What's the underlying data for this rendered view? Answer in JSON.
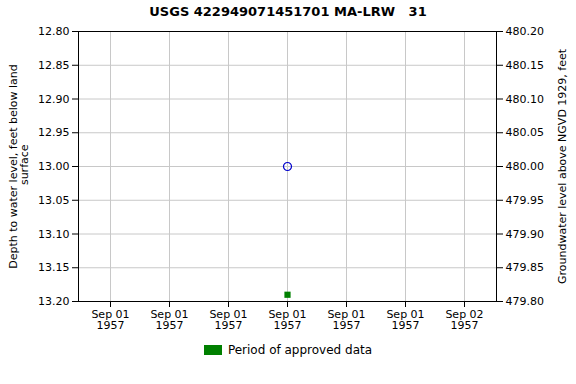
{
  "chart_data": {
    "type": "scatter",
    "title": "USGS 422949071451701 MA-LRW   31",
    "ylabel": "Depth to water level, feet below land\n surface",
    "y2label": "Groundwater level above NGVD 1929, feet",
    "categories": [
      "Sep 01\n1957",
      "Sep 01\n1957",
      "Sep 01\n1957",
      "Sep 01\n1957",
      "Sep 01\n1957",
      "Sep 01\n1957",
      "Sep 02\n1957"
    ],
    "series": [
      {
        "color": "#0000cc",
        "marker": "circle-open",
        "values": [
          null,
          null,
          null,
          13.0,
          null,
          null,
          null
        ]
      },
      {
        "name": "Period of approved data",
        "color": "#008000",
        "marker": "square",
        "values": [
          null,
          null,
          null,
          13.19,
          null,
          null,
          null
        ]
      }
    ],
    "ylim": [
      13.2,
      12.8
    ],
    "yticks": [
      {
        "value": 12.8,
        "label": "12.80"
      },
      12.85,
      {
        "value": 12.9,
        "label": "12.90"
      },
      12.95,
      {
        "value": 13,
        "label": "13.00"
      },
      13.05,
      {
        "value": 13.1,
        "label": "13.10"
      },
      13.15,
      {
        "value": 13.2,
        "label": "13.20"
      }
    ],
    "y2lim": [
      479.8,
      480.2
    ],
    "y2ticks": [
      {
        "value": 480.2,
        "label": "480.20"
      },
      480.15,
      {
        "value": 480.1,
        "label": "480.10"
      },
      480.05,
      {
        "value": 480,
        "label": "480.00"
      },
      479.95,
      {
        "value": 479.9,
        "label": "479.90"
      },
      479.85,
      {
        "value": 479.8,
        "label": "479.80"
      }
    ],
    "grid": true,
    "legend": "bottom"
  }
}
